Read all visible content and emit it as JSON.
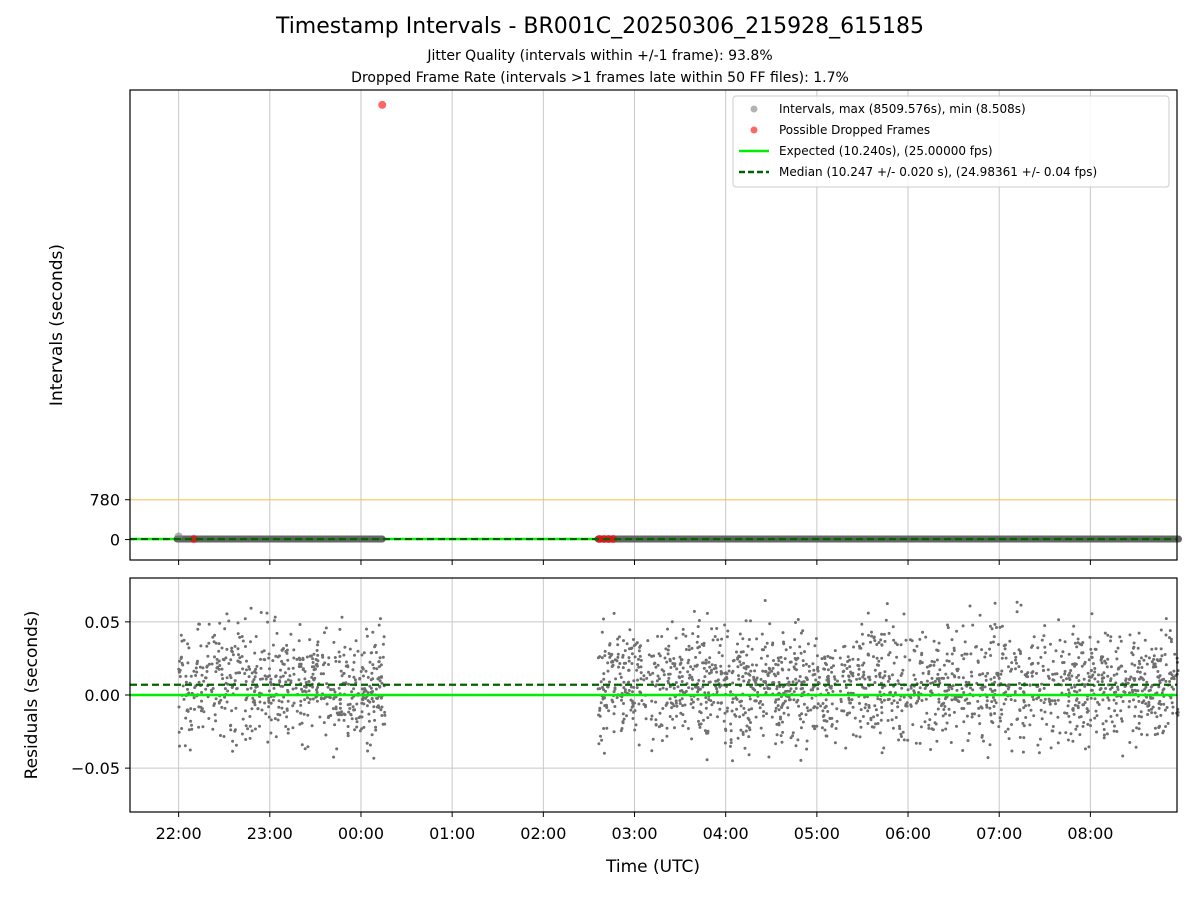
{
  "title": "Timestamp Intervals - BR001C_20250306_215928_615185",
  "subtitle_jitter": "Jitter Quality (intervals within +/-1 frame): 93.8%",
  "subtitle_dropped": "Dropped Frame Rate (intervals >1 frames late within 50 FF files): 1.7%",
  "colors": {
    "intervals": "#808080",
    "dropped": "#ff0000",
    "expected": "#00ee00",
    "median": "#006400",
    "threshold": "#f5c242",
    "grid": "#c8c8c8"
  },
  "chart_data": [
    {
      "type": "scatter",
      "panel": "intervals",
      "ylabel": "Intervals (seconds)",
      "ytick_labels": [
        "0",
        "780"
      ],
      "yticks": [
        0,
        780
      ],
      "ylim": [
        -400,
        8800
      ],
      "grid": "x only",
      "legend_position": "top-right",
      "legend": [
        "Intervals, max (8509.576s), min (8.508s)",
        "Possible Dropped Frames",
        "Expected (10.240s), (25.00000 fps)",
        "Median (10.247 +/- 0.020 s), (24.98361 +/- 0.04 fps)"
      ],
      "segments": [
        {
          "series": "Intervals",
          "start": "21:59",
          "end": "00:14",
          "value": 10.25
        },
        {
          "series": "Intervals",
          "start": "02:36",
          "end": "08:58",
          "value": 10.25
        }
      ],
      "points": [
        {
          "series": "Intervals",
          "time": "22:00",
          "value": 60
        },
        {
          "series": "Possible Dropped Frames",
          "time": "22:10",
          "value": 10.3
        },
        {
          "series": "Possible Dropped Frames",
          "time": "00:14",
          "value": 8509.576
        },
        {
          "series": "Possible Dropped Frames",
          "time": "02:37",
          "value": 11
        },
        {
          "series": "Possible Dropped Frames",
          "time": "02:40",
          "value": 11
        },
        {
          "series": "Possible Dropped Frames",
          "time": "02:43",
          "value": 11
        },
        {
          "series": "Possible Dropped Frames",
          "time": "02:46",
          "value": 11
        }
      ],
      "reference_lines": [
        {
          "name": "Expected",
          "value": 10.24
        },
        {
          "name": "Median",
          "value": 10.247
        },
        {
          "name": "Threshold",
          "value": 780
        }
      ]
    },
    {
      "type": "scatter",
      "panel": "residuals",
      "ylabel": "Residuals (seconds)",
      "xlabel": "Time (UTC)",
      "x_ticks": [
        "22:00",
        "23:00",
        "00:00",
        "01:00",
        "02:00",
        "03:00",
        "04:00",
        "05:00",
        "06:00",
        "07:00",
        "08:00"
      ],
      "xlim": [
        "21:28",
        "08:57"
      ],
      "yticks": [
        -0.05,
        0.0,
        0.05
      ],
      "ytick_labels": [
        "−0.05",
        "0.00",
        "0.05"
      ],
      "ylim": [
        -0.08,
        0.08
      ],
      "grid": "both",
      "expected": 0.0,
      "median": 0.007,
      "clusters": [
        {
          "start": "22:00",
          "end": "00:16",
          "center": 0.007,
          "spread": 0.02
        },
        {
          "start": "02:36",
          "end": "08:58",
          "center": 0.007,
          "spread": 0.02
        }
      ]
    }
  ]
}
